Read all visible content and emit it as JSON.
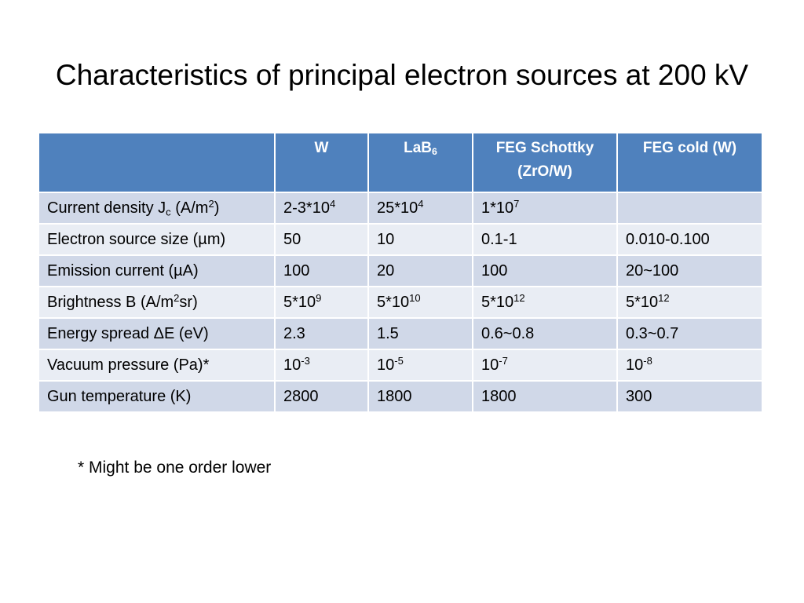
{
  "title": "Characteristics of principal electron sources at 200 kV",
  "table": {
    "headers": {
      "w": "W",
      "lab6": {
        "base": "LaB",
        "sub": "6"
      },
      "feg_schottky": [
        "FEG Schottky",
        "(ZrO/W)"
      ],
      "feg_cold": "FEG cold (W)"
    },
    "rows": [
      {
        "label": {
          "pre": "Current density J",
          "sub": "c",
          "mid": " (A/m",
          "sup": "2",
          "post": ")"
        },
        "w": {
          "base": "2-3*10",
          "sup": "4"
        },
        "lab6": {
          "base": "25*10",
          "sup": "4"
        },
        "feg_schottky": {
          "base": "1*10",
          "sup": "7"
        },
        "feg_cold": {
          "base": "",
          "sup": ""
        }
      },
      {
        "label": {
          "pre": "Electron source size (µm)",
          "sub": "",
          "mid": "",
          "sup": "",
          "post": ""
        },
        "w": {
          "base": "50",
          "sup": ""
        },
        "lab6": {
          "base": "10",
          "sup": ""
        },
        "feg_schottky": {
          "base": "0.1-1",
          "sup": ""
        },
        "feg_cold": {
          "base": "0.010-0.100",
          "sup": ""
        }
      },
      {
        "label": {
          "pre": "Emission current (µA)",
          "sub": "",
          "mid": "",
          "sup": "",
          "post": ""
        },
        "w": {
          "base": "100",
          "sup": ""
        },
        "lab6": {
          "base": "20",
          "sup": ""
        },
        "feg_schottky": {
          "base": "100",
          "sup": ""
        },
        "feg_cold": {
          "base": "20~100",
          "sup": ""
        }
      },
      {
        "label": {
          "pre": "Brightness B (A/m",
          "sub": "",
          "mid": "",
          "sup": "2",
          "post": "sr)"
        },
        "w": {
          "base": "5*10",
          "sup": "9"
        },
        "lab6": {
          "base": "5*10",
          "sup": "10"
        },
        "feg_schottky": {
          "base": "5*10",
          "sup": "12"
        },
        "feg_cold": {
          "base": "5*10",
          "sup": "12"
        }
      },
      {
        "label": {
          "pre": "Energy spread ΔE (eV)",
          "sub": "",
          "mid": "",
          "sup": "",
          "post": ""
        },
        "w": {
          "base": "2.3",
          "sup": ""
        },
        "lab6": {
          "base": "1.5",
          "sup": ""
        },
        "feg_schottky": {
          "base": "0.6~0.8",
          "sup": ""
        },
        "feg_cold": {
          "base": "0.3~0.7",
          "sup": ""
        }
      },
      {
        "label": {
          "pre": "Vacuum pressure (Pa)*",
          "sub": "",
          "mid": "",
          "sup": "",
          "post": ""
        },
        "w": {
          "base": "10",
          "sup": "-3"
        },
        "lab6": {
          "base": "10",
          "sup": "-5"
        },
        "feg_schottky": {
          "base": "10",
          "sup": "-7"
        },
        "feg_cold": {
          "base": "10",
          "sup": "-8"
        }
      },
      {
        "label": {
          "pre": "Gun temperature (K)",
          "sub": "",
          "mid": "",
          "sup": "",
          "post": ""
        },
        "w": {
          "base": "2800",
          "sup": ""
        },
        "lab6": {
          "base": "1800",
          "sup": ""
        },
        "feg_schottky": {
          "base": "1800",
          "sup": ""
        },
        "feg_cold": {
          "base": "300",
          "sup": ""
        }
      }
    ]
  },
  "footnote": "* Might be one order lower",
  "colors": {
    "header_bg": "#4f81bd",
    "row_dark": "#d0d8e8",
    "row_light": "#e9edf4"
  }
}
